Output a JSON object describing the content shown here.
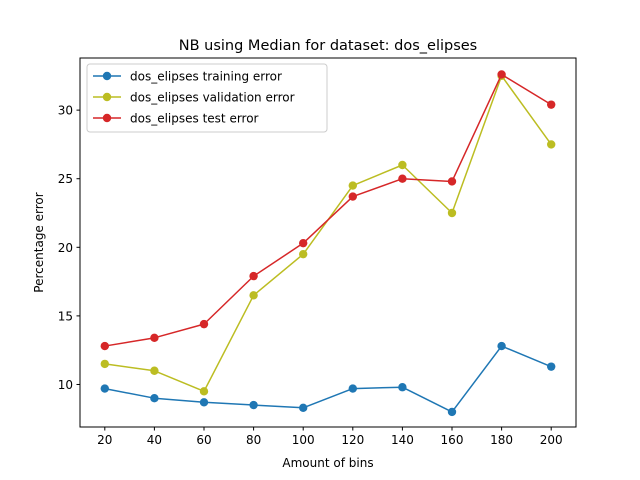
{
  "chart_data": {
    "type": "line",
    "title": "NB using Median for dataset: dos_elipses",
    "xlabel": "Amount of bins",
    "ylabel": "Percentage error",
    "x": [
      20,
      40,
      60,
      80,
      100,
      120,
      140,
      160,
      180,
      200
    ],
    "xlim": [
      10,
      210
    ],
    "ylim": [
      6.9,
      33.8
    ],
    "xticks": [
      20,
      40,
      60,
      80,
      100,
      120,
      140,
      160,
      180,
      200
    ],
    "yticks": [
      10,
      15,
      20,
      25,
      30
    ],
    "grid": false,
    "legend_position": "top-left",
    "series": [
      {
        "name": "dos_elipses training error",
        "color": "#1f77b4",
        "values": [
          9.7,
          9.0,
          8.7,
          8.5,
          8.3,
          9.7,
          9.8,
          8.0,
          12.8,
          11.3
        ]
      },
      {
        "name": "dos_elipses validation error",
        "color": "#bcbd22",
        "values": [
          11.5,
          11.0,
          9.5,
          16.5,
          19.5,
          24.5,
          26.0,
          22.5,
          32.5,
          27.5
        ]
      },
      {
        "name": "dos_elipses test error",
        "color": "#d62728",
        "values": [
          12.8,
          13.4,
          14.4,
          17.9,
          20.3,
          23.7,
          25.0,
          24.8,
          32.6,
          30.4
        ]
      }
    ]
  }
}
